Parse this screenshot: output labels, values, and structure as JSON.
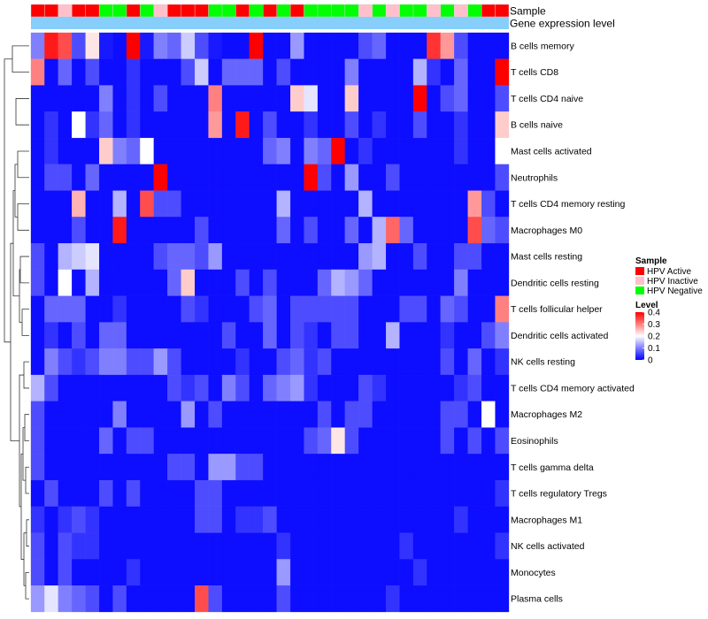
{
  "chart_data": {
    "type": "heatmap",
    "annotation_labels": [
      "Sample",
      "Gene expression level"
    ],
    "rows": [
      "B cells memory",
      "T cells CD8",
      "T cells CD4 naive",
      "B cells naive",
      "Mast cells activated",
      "Neutrophils",
      "T cells CD4 memory resting",
      "Macrophages M0",
      "Mast cells resting",
      "Dendritic cells resting",
      "T cells follicular helper",
      "Dendritic cells activated",
      "NK cells resting",
      "T cells CD4 memory activated",
      "Macrophages M2",
      "Eosinophils",
      "T cells gamma delta",
      "T cells regulatory  Tregs",
      "Macrophages M1",
      "NK cells activated",
      "Monocytes",
      "Plasma cells"
    ],
    "sample_groups": [
      "A",
      "A",
      "I",
      "A",
      "A",
      "N",
      "N",
      "A",
      "N",
      "I",
      "A",
      "A",
      "A",
      "N",
      "N",
      "A",
      "N",
      "A",
      "N",
      "A",
      "N",
      "N",
      "N",
      "N",
      "I",
      "N",
      "I",
      "N",
      "N",
      "I",
      "N",
      "I",
      "N",
      "A",
      "A"
    ],
    "values": [
      [
        0.1,
        0.38,
        0.34,
        0.06,
        0.22,
        0.02,
        0.01,
        0.4,
        0.02,
        0.1,
        0.08,
        0.16,
        0.06,
        0.02,
        0.01,
        0.01,
        0.4,
        0.01,
        0.01,
        0.12,
        0.01,
        0.01,
        0.01,
        0.01,
        0.06,
        0.08,
        0.01,
        0.01,
        0.01,
        0.36,
        0.28,
        0.06,
        0.01,
        0.01,
        0.01
      ],
      [
        0.3,
        0.01,
        0.08,
        0.01,
        0.06,
        0.01,
        0.01,
        0.04,
        0.01,
        0.01,
        0.01,
        0.06,
        0.16,
        0.01,
        0.08,
        0.08,
        0.08,
        0.01,
        0.06,
        0.01,
        0.01,
        0.01,
        0.01,
        0.1,
        0.01,
        0.01,
        0.01,
        0.01,
        0.14,
        0.04,
        0.01,
        0.08,
        0.01,
        0.01,
        0.4
      ],
      [
        0.01,
        0.01,
        0.01,
        0.01,
        0.01,
        0.1,
        0.01,
        0.04,
        0.01,
        0.06,
        0.01,
        0.01,
        0.01,
        0.3,
        0.01,
        0.01,
        0.01,
        0.01,
        0.01,
        0.24,
        0.18,
        0.01,
        0.01,
        0.24,
        0.01,
        0.01,
        0.01,
        0.01,
        0.4,
        0.01,
        0.06,
        0.08,
        0.01,
        0.01,
        0.06
      ],
      [
        0.01,
        0.04,
        0.01,
        0.2,
        0.04,
        0.08,
        0.01,
        0.04,
        0.01,
        0.01,
        0.01,
        0.01,
        0.01,
        0.28,
        0.01,
        0.38,
        0.01,
        0.06,
        0.01,
        0.01,
        0.04,
        0.01,
        0.01,
        0.06,
        0.01,
        0.04,
        0.01,
        0.01,
        0.06,
        0.01,
        0.01,
        0.04,
        0.01,
        0.01,
        0.24
      ],
      [
        0.01,
        0.04,
        0.01,
        0.01,
        0.01,
        0.24,
        0.1,
        0.08,
        0.2,
        0.01,
        0.01,
        0.01,
        0.01,
        0.01,
        0.01,
        0.01,
        0.01,
        0.08,
        0.1,
        0.01,
        0.1,
        0.08,
        0.4,
        0.01,
        0.04,
        0.01,
        0.01,
        0.01,
        0.01,
        0.01,
        0.01,
        0.04,
        0.01,
        0.01,
        0.2
      ],
      [
        0.01,
        0.06,
        0.06,
        0.01,
        0.08,
        0.01,
        0.01,
        0.01,
        0.01,
        0.4,
        0.01,
        0.01,
        0.01,
        0.01,
        0.01,
        0.01,
        0.01,
        0.01,
        0.01,
        0.01,
        0.4,
        0.06,
        0.01,
        0.12,
        0.01,
        0.01,
        0.06,
        0.01,
        0.01,
        0.01,
        0.01,
        0.01,
        0.01,
        0.01,
        0.06
      ],
      [
        0.01,
        0.01,
        0.01,
        0.26,
        0.01,
        0.01,
        0.14,
        0.01,
        0.34,
        0.06,
        0.06,
        0.01,
        0.01,
        0.01,
        0.01,
        0.01,
        0.01,
        0.01,
        0.14,
        0.01,
        0.01,
        0.01,
        0.01,
        0.01,
        0.14,
        0.01,
        0.01,
        0.01,
        0.01,
        0.01,
        0.01,
        0.01,
        0.28,
        0.06,
        0.01
      ],
      [
        0.01,
        0.01,
        0.01,
        0.06,
        0.01,
        0.01,
        0.38,
        0.01,
        0.01,
        0.01,
        0.01,
        0.01,
        0.06,
        0.01,
        0.01,
        0.01,
        0.01,
        0.01,
        0.08,
        0.01,
        0.06,
        0.01,
        0.01,
        0.08,
        0.01,
        0.14,
        0.32,
        0.08,
        0.01,
        0.01,
        0.01,
        0.01,
        0.34,
        0.08,
        0.06
      ],
      [
        0.06,
        0.01,
        0.14,
        0.16,
        0.18,
        0.01,
        0.01,
        0.01,
        0.01,
        0.06,
        0.08,
        0.08,
        0.06,
        0.12,
        0.01,
        0.01,
        0.01,
        0.01,
        0.01,
        0.01,
        0.01,
        0.01,
        0.01,
        0.01,
        0.12,
        0.14,
        0.01,
        0.01,
        0.06,
        0.01,
        0.01,
        0.06,
        0.06,
        0.01,
        0.01
      ],
      [
        0.06,
        0.01,
        0.2,
        0.01,
        0.14,
        0.01,
        0.01,
        0.01,
        0.01,
        0.01,
        0.08,
        0.24,
        0.01,
        0.01,
        0.01,
        0.06,
        0.01,
        0.06,
        0.01,
        0.01,
        0.01,
        0.08,
        0.14,
        0.12,
        0.08,
        0.01,
        0.01,
        0.01,
        0.01,
        0.01,
        0.01,
        0.1,
        0.01,
        0.01,
        0.01
      ],
      [
        0.01,
        0.08,
        0.08,
        0.08,
        0.01,
        0.01,
        0.04,
        0.01,
        0.01,
        0.01,
        0.01,
        0.06,
        0.04,
        0.01,
        0.01,
        0.01,
        0.06,
        0.08,
        0.01,
        0.06,
        0.06,
        0.06,
        0.06,
        0.06,
        0.01,
        0.01,
        0.01,
        0.06,
        0.06,
        0.01,
        0.08,
        0.06,
        0.01,
        0.01,
        0.3
      ],
      [
        0.01,
        0.04,
        0.01,
        0.06,
        0.01,
        0.08,
        0.08,
        0.01,
        0.01,
        0.01,
        0.01,
        0.01,
        0.01,
        0.01,
        0.06,
        0.01,
        0.01,
        0.08,
        0.01,
        0.06,
        0.04,
        0.01,
        0.06,
        0.06,
        0.01,
        0.01,
        0.14,
        0.01,
        0.01,
        0.01,
        0.04,
        0.01,
        0.01,
        0.06,
        0.1
      ],
      [
        0.01,
        0.1,
        0.06,
        0.04,
        0.06,
        0.1,
        0.1,
        0.06,
        0.06,
        0.12,
        0.06,
        0.01,
        0.01,
        0.01,
        0.01,
        0.04,
        0.01,
        0.01,
        0.06,
        0.08,
        0.04,
        0.06,
        0.01,
        0.01,
        0.01,
        0.01,
        0.01,
        0.01,
        0.01,
        0.01,
        0.06,
        0.01,
        0.08,
        0.01,
        0.04
      ],
      [
        0.14,
        0.06,
        0.01,
        0.01,
        0.01,
        0.01,
        0.01,
        0.01,
        0.01,
        0.01,
        0.06,
        0.04,
        0.06,
        0.01,
        0.1,
        0.06,
        0.01,
        0.08,
        0.1,
        0.12,
        0.04,
        0.01,
        0.01,
        0.01,
        0.06,
        0.04,
        0.01,
        0.01,
        0.01,
        0.01,
        0.01,
        0.04,
        0.06,
        0.01,
        0.01
      ],
      [
        0.06,
        0.01,
        0.01,
        0.01,
        0.01,
        0.01,
        0.1,
        0.01,
        0.01,
        0.01,
        0.01,
        0.12,
        0.01,
        0.06,
        0.01,
        0.01,
        0.01,
        0.01,
        0.01,
        0.01,
        0.01,
        0.06,
        0.01,
        0.06,
        0.06,
        0.01,
        0.01,
        0.01,
        0.01,
        0.01,
        0.06,
        0.06,
        0.01,
        0.2,
        0.01
      ],
      [
        0.06,
        0.01,
        0.01,
        0.01,
        0.01,
        0.08,
        0.01,
        0.06,
        0.06,
        0.01,
        0.01,
        0.01,
        0.01,
        0.01,
        0.01,
        0.01,
        0.01,
        0.01,
        0.01,
        0.01,
        0.06,
        0.08,
        0.22,
        0.06,
        0.01,
        0.01,
        0.01,
        0.01,
        0.01,
        0.01,
        0.06,
        0.01,
        0.06,
        0.01,
        0.06
      ],
      [
        0.06,
        0.01,
        0.01,
        0.01,
        0.01,
        0.01,
        0.01,
        0.01,
        0.01,
        0.01,
        0.06,
        0.06,
        0.01,
        0.12,
        0.12,
        0.06,
        0.06,
        0.01,
        0.01,
        0.01,
        0.01,
        0.01,
        0.01,
        0.01,
        0.01,
        0.01,
        0.01,
        0.01,
        0.01,
        0.01,
        0.01,
        0.01,
        0.01,
        0.01,
        0.01
      ],
      [
        0.01,
        0.06,
        0.01,
        0.01,
        0.01,
        0.06,
        0.01,
        0.06,
        0.01,
        0.01,
        0.01,
        0.01,
        0.06,
        0.06,
        0.01,
        0.01,
        0.01,
        0.01,
        0.01,
        0.01,
        0.01,
        0.01,
        0.01,
        0.01,
        0.01,
        0.01,
        0.01,
        0.01,
        0.01,
        0.01,
        0.01,
        0.01,
        0.01,
        0.01,
        0.04
      ],
      [
        0.04,
        0.01,
        0.04,
        0.06,
        0.04,
        0.01,
        0.01,
        0.01,
        0.01,
        0.01,
        0.01,
        0.01,
        0.06,
        0.06,
        0.01,
        0.04,
        0.04,
        0.06,
        0.01,
        0.01,
        0.01,
        0.01,
        0.01,
        0.01,
        0.01,
        0.01,
        0.01,
        0.01,
        0.01,
        0.01,
        0.01,
        0.04,
        0.01,
        0.01,
        0.01
      ],
      [
        0.06,
        0.01,
        0.06,
        0.04,
        0.04,
        0.01,
        0.01,
        0.01,
        0.01,
        0.01,
        0.01,
        0.01,
        0.01,
        0.01,
        0.01,
        0.01,
        0.01,
        0.01,
        0.04,
        0.01,
        0.01,
        0.01,
        0.01,
        0.01,
        0.01,
        0.01,
        0.01,
        0.04,
        0.01,
        0.01,
        0.01,
        0.01,
        0.01,
        0.01,
        0.04
      ],
      [
        0.06,
        0.01,
        0.06,
        0.01,
        0.01,
        0.01,
        0.01,
        0.04,
        0.01,
        0.01,
        0.01,
        0.01,
        0.01,
        0.01,
        0.01,
        0.01,
        0.01,
        0.01,
        0.12,
        0.01,
        0.01,
        0.01,
        0.01,
        0.01,
        0.01,
        0.01,
        0.01,
        0.01,
        0.04,
        0.01,
        0.01,
        0.01,
        0.01,
        0.01,
        0.01
      ],
      [
        0.12,
        0.18,
        0.1,
        0.08,
        0.06,
        0.01,
        0.06,
        0.01,
        0.01,
        0.01,
        0.01,
        0.01,
        0.34,
        0.06,
        0.01,
        0.01,
        0.01,
        0.01,
        0.06,
        0.01,
        0.01,
        0.01,
        0.01,
        0.01,
        0.01,
        0.01,
        0.04,
        0.01,
        0.01,
        0.01,
        0.01,
        0.01,
        0.01,
        0.01,
        0.01
      ]
    ],
    "legend_sample": {
      "title": "Sample",
      "entries": [
        {
          "key": "A",
          "label": "HPV Active",
          "color": "#ff0000"
        },
        {
          "key": "I",
          "label": "HPV Inactive",
          "color": "#ffc0cb"
        },
        {
          "key": "N",
          "label": "HPV Negative",
          "color": "#00ff00"
        }
      ]
    },
    "legend_level": {
      "title": "Level",
      "ticks": [
        "0.4",
        "0.3",
        "0.2",
        "0.1",
        "0"
      ],
      "tick_values": [
        0.4,
        0.3,
        0.2,
        0.1,
        0
      ],
      "min": 0,
      "max": 0.4
    },
    "colors": {
      "low": "#0000ff",
      "mid": "#ffffff",
      "high": "#ff0000",
      "expression_bar": "#87cefa",
      "dendrogram": "#333333",
      "cell_border": "#d8d8d8"
    }
  }
}
